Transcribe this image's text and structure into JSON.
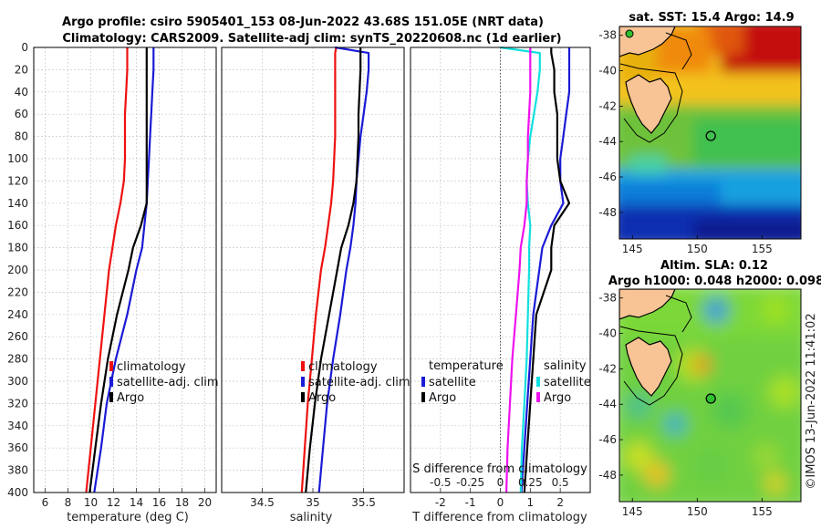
{
  "titles": {
    "line1": "Argo profile: csiro 5905401_153 08-Jun-2022 43.68S 151.05E (NRT data)",
    "line2": "Climatology: CARS2009. Satellite-adj clim: synTS_20220608.nc (1d earlier)",
    "sst": "sat. SST: 15.4 Argo: 14.9",
    "sla1": "Altim. SLA: 0.12",
    "sla2": "Argo h1000: 0.048 h2000: 0.098"
  },
  "credit": "©IMOS 13-Jun-2022 11:41:02",
  "colors": {
    "clim": "#ee1111",
    "sat": "#1a1ad6",
    "argo": "#000000",
    "s_clim": "#ee11ee",
    "s_sat": "#11e0e0"
  },
  "depth_ticks": [
    "0",
    "20",
    "40",
    "60",
    "80",
    "100",
    "120",
    "140",
    "160",
    "180",
    "200",
    "220",
    "240",
    "260",
    "280",
    "300",
    "320",
    "340",
    "360",
    "380",
    "400"
  ],
  "chart_data": [
    {
      "type": "line",
      "id": "temperature",
      "xlabel": "temperature (deg C)",
      "xlim": [
        5,
        21
      ],
      "ylim": [
        0,
        400
      ],
      "xticks": [
        6,
        8,
        10,
        12,
        14,
        16,
        18,
        20
      ],
      "xtick_labels": [
        "6",
        "8",
        "10",
        "12",
        "14",
        "16",
        "18",
        "20"
      ],
      "legend": [
        "climatology",
        "satellite-adj. clim",
        "Argo"
      ],
      "depth": [
        0,
        20,
        40,
        60,
        80,
        100,
        120,
        140,
        160,
        180,
        200,
        240,
        280,
        320,
        360,
        400
      ],
      "series": [
        {
          "name": "climatology",
          "color_key": "clim",
          "values": [
            13.2,
            13.2,
            13.1,
            13.0,
            13.0,
            13.0,
            12.9,
            12.6,
            12.2,
            11.9,
            11.6,
            11.2,
            10.8,
            10.4,
            10.0,
            9.6
          ]
        },
        {
          "name": "satellite-adj. clim",
          "color_key": "sat",
          "values": [
            15.5,
            15.5,
            15.4,
            15.3,
            15.2,
            15.1,
            15.0,
            14.9,
            14.7,
            14.5,
            14.0,
            13.2,
            12.2,
            11.4,
            10.9,
            10.3
          ]
        },
        {
          "name": "Argo",
          "color_key": "argo",
          "values": [
            14.9,
            14.9,
            14.9,
            14.9,
            14.9,
            14.9,
            14.9,
            14.9,
            14.4,
            13.7,
            13.3,
            12.3,
            11.5,
            10.9,
            10.4,
            9.9
          ]
        }
      ]
    },
    {
      "type": "line",
      "id": "salinity",
      "xlabel": "salinity",
      "xlim": [
        34.1,
        35.9
      ],
      "ylim": [
        0,
        400
      ],
      "xticks": [
        34.5,
        35,
        35.5
      ],
      "xtick_labels": [
        "34.5",
        "35",
        "35.5"
      ],
      "legend": [
        "climatology",
        "satellite-adj. clim",
        "Argo"
      ],
      "depth": [
        0,
        5,
        20,
        40,
        60,
        80,
        100,
        120,
        140,
        160,
        180,
        200,
        240,
        280,
        320,
        360,
        400
      ],
      "series": [
        {
          "name": "climatology",
          "color_key": "clim",
          "values": [
            35.23,
            35.22,
            35.22,
            35.22,
            35.22,
            35.22,
            35.21,
            35.2,
            35.18,
            35.15,
            35.12,
            35.08,
            35.03,
            34.99,
            34.95,
            34.92,
            34.89
          ],
          "depth": [
            0,
            5,
            20,
            40,
            60,
            80,
            100,
            120,
            140,
            160,
            180,
            200,
            240,
            280,
            320,
            360,
            400
          ]
        },
        {
          "name": "satellite-adj. clim",
          "color_key": "sat",
          "values": [
            35.22,
            35.55,
            35.55,
            35.53,
            35.5,
            35.47,
            35.45,
            35.43,
            35.42,
            35.4,
            35.37,
            35.33,
            35.27,
            35.2,
            35.14,
            35.1,
            35.06
          ]
        },
        {
          "name": "Argo",
          "color_key": "argo",
          "values": [
            35.47,
            35.47,
            35.47,
            35.46,
            35.45,
            35.45,
            35.44,
            35.43,
            35.4,
            35.35,
            35.28,
            35.24,
            35.16,
            35.08,
            35.02,
            34.97,
            34.93
          ]
        }
      ]
    },
    {
      "type": "line",
      "id": "difference",
      "xlabel": "T difference from climatology",
      "xlabel_top": "S difference from climatology",
      "xlim": [
        -3,
        3
      ],
      "ylim": [
        0,
        400
      ],
      "xticks": [
        -2,
        -1,
        0,
        1,
        2
      ],
      "xtick_labels": [
        "-2",
        "-1",
        "0",
        "1",
        "2"
      ],
      "s_ticks": [
        -0.5,
        -0.25,
        0,
        0.25,
        0.5
      ],
      "s_tick_labels": [
        "-0.5",
        "-0.25",
        "0",
        "0.25",
        "0.5"
      ],
      "legend_left_title": "temperature",
      "legend_right_title": "salinity",
      "legend": [
        "satellite",
        "Argo"
      ],
      "depth": [
        0,
        5,
        20,
        40,
        60,
        80,
        100,
        120,
        140,
        160,
        180,
        200,
        240,
        280,
        320,
        360,
        400
      ],
      "series": [
        {
          "name": "temperature satellite",
          "color_key": "sat",
          "values": [
            2.3,
            2.3,
            2.3,
            2.3,
            2.2,
            2.1,
            2.0,
            2.0,
            2.1,
            1.7,
            1.4,
            1.3,
            1.1,
            1.0,
            0.9,
            0.8,
            0.7
          ]
        },
        {
          "name": "temperature Argo",
          "color_key": "argo",
          "values": [
            1.7,
            1.7,
            1.8,
            1.8,
            1.9,
            1.9,
            1.9,
            2.0,
            2.3,
            1.8,
            1.7,
            1.7,
            1.2,
            1.1,
            1.0,
            0.9,
            0.8
          ]
        },
        {
          "name": "salinity satellite",
          "color_key": "s_sat",
          "values": [
            0.0,
            0.33,
            0.33,
            0.31,
            0.28,
            0.25,
            0.23,
            0.22,
            0.23,
            0.25,
            0.24,
            0.24,
            0.23,
            0.22,
            0.2,
            0.18,
            0.17
          ]
        },
        {
          "name": "salinity Argo",
          "color_key": "s_clim",
          "values": [
            0.25,
            0.25,
            0.25,
            0.25,
            0.24,
            0.23,
            0.23,
            0.22,
            0.22,
            0.2,
            0.17,
            0.16,
            0.13,
            0.1,
            0.08,
            0.06,
            0.05
          ]
        }
      ]
    },
    {
      "type": "heatmap",
      "id": "sst_map",
      "title": "sat. SST: 15.4 Argo: 14.9",
      "xlim": [
        144,
        158
      ],
      "ylim": [
        -49.5,
        -37.5
      ],
      "xticks": [
        145,
        150,
        155
      ],
      "xtick_labels": [
        "145",
        "150",
        "155"
      ],
      "yticks": [
        -38,
        -40,
        -42,
        -44,
        -46,
        -48
      ],
      "ytick_labels": [
        "-38",
        "-40",
        "-42",
        "-44",
        "-46",
        "-48"
      ],
      "argo_position": [
        151.05,
        -43.68
      ]
    },
    {
      "type": "heatmap",
      "id": "sla_map",
      "title": "Altim. SLA: 0.12",
      "xlim": [
        144,
        158
      ],
      "ylim": [
        -49.5,
        -37.5
      ],
      "xticks": [
        145,
        150,
        155
      ],
      "xtick_labels": [
        "145",
        "150",
        "155"
      ],
      "yticks": [
        -38,
        -40,
        -42,
        -44,
        -46,
        -48
      ],
      "ytick_labels": [
        "-38",
        "-40",
        "-42",
        "-44",
        "-46",
        "-48"
      ],
      "argo_position": [
        151.05,
        -43.68
      ]
    }
  ]
}
